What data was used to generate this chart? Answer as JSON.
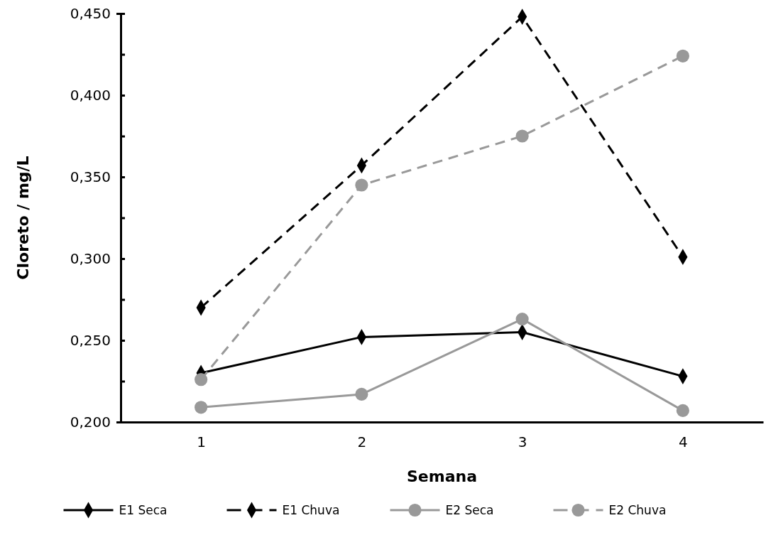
{
  "chart_data": {
    "type": "line",
    "xlabel": "Semana",
    "ylabel": "Cloreto / mg/L",
    "categories": [
      "1",
      "2",
      "3",
      "4"
    ],
    "ylim": [
      0.2,
      0.45
    ],
    "yticks": [
      {
        "value": 0.2,
        "label": "0,200"
      },
      {
        "value": 0.225,
        "label": null
      },
      {
        "value": 0.25,
        "label": "0,250"
      },
      {
        "value": 0.275,
        "label": null
      },
      {
        "value": 0.3,
        "label": "0,300"
      },
      {
        "value": 0.325,
        "label": null
      },
      {
        "value": 0.35,
        "label": "0,350"
      },
      {
        "value": 0.375,
        "label": null
      },
      {
        "value": 0.4,
        "label": "0,400"
      },
      {
        "value": 0.425,
        "label": null
      },
      {
        "value": 0.45,
        "label": "0,450"
      }
    ],
    "grid": false,
    "legend": "bottom",
    "series": [
      {
        "name": "E1 Seca",
        "color": "#000000",
        "marker": "diamond",
        "line_style": "solid",
        "values": [
          0.23,
          0.252,
          0.255,
          0.228
        ]
      },
      {
        "name": "E1 Chuva",
        "color": "#000000",
        "marker": "diamond",
        "line_style": "dashed",
        "values": [
          0.27,
          0.357,
          0.448,
          0.301
        ]
      },
      {
        "name": "E2 Seca",
        "color": "#999999",
        "marker": "circle",
        "line_style": "solid",
        "values": [
          0.209,
          0.217,
          0.263,
          0.207
        ]
      },
      {
        "name": "E2 Chuva",
        "color": "#999999",
        "marker": "circle",
        "line_style": "dashed",
        "values": [
          0.226,
          0.345,
          0.375,
          0.424
        ]
      }
    ]
  }
}
